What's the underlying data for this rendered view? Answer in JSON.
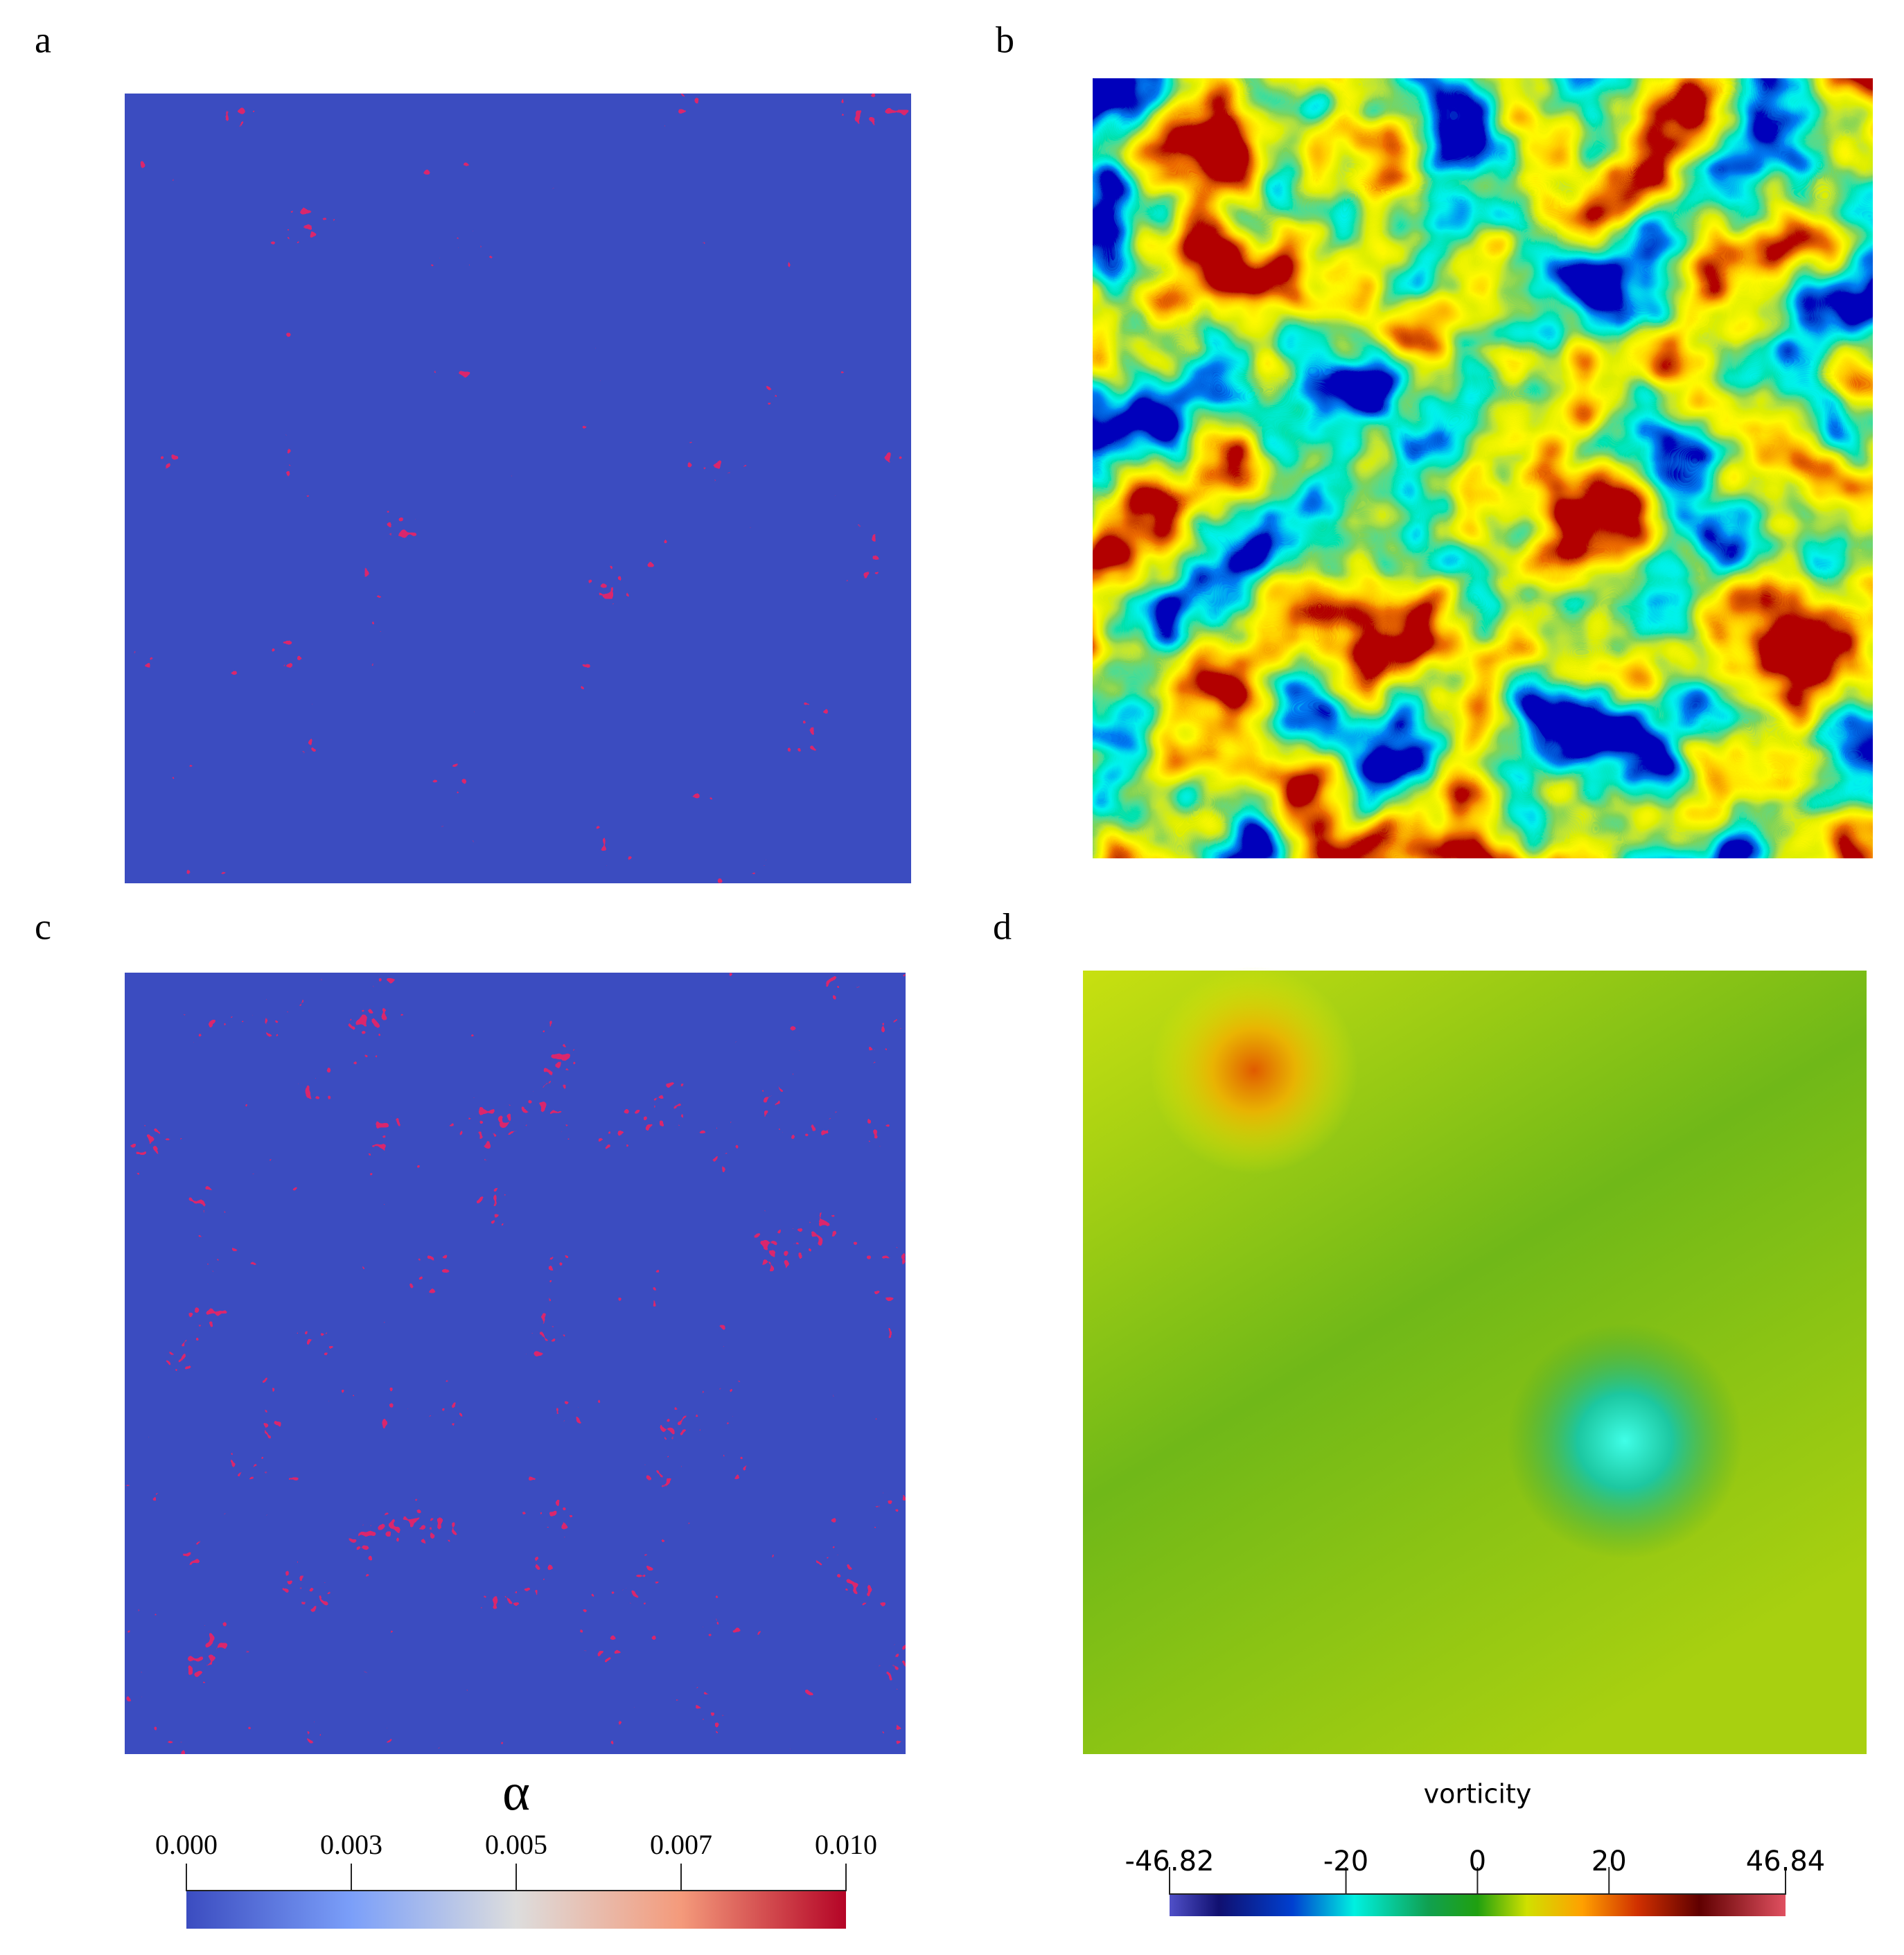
{
  "chart_data": [
    {
      "type": "heatmap",
      "panels": [
        "a",
        "c"
      ],
      "colorbar": {
        "title": "α",
        "lim": [
          0,
          0.01
        ],
        "ticks": [
          {
            "value": 0,
            "label": "0.000"
          },
          {
            "value": 0.0025,
            "label": "0.003"
          },
          {
            "value": 0.005,
            "label": "0.005"
          },
          {
            "value": 0.0075,
            "label": "0.007"
          },
          {
            "value": 0.01,
            "label": "0.010"
          }
        ]
      }
    },
    {
      "type": "heatmap",
      "panels": [
        "b",
        "d"
      ],
      "colorbar": {
        "title": "vorticity",
        "lim": [
          -46.82,
          46.84
        ],
        "ticks": [
          -46.82,
          -20,
          0,
          20,
          46.84
        ]
      }
    }
  ]
}
